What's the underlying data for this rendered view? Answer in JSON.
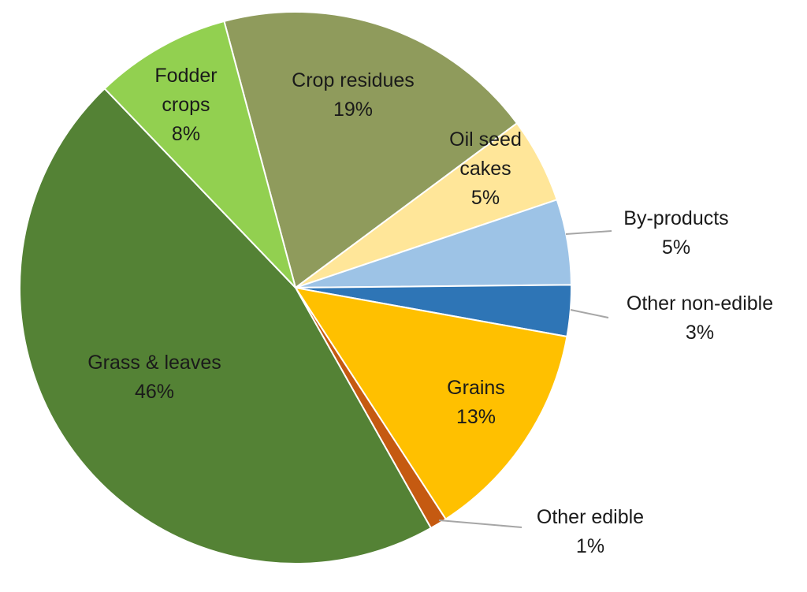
{
  "chart_data": {
    "type": "pie",
    "title": "",
    "start_category": "Crop residues",
    "direction": "clockwise",
    "slices": [
      {
        "label": "Crop residues",
        "value": 19,
        "value_label": "19%",
        "color": "#8F9B5C"
      },
      {
        "label": "Oil seed cakes",
        "value": 5,
        "value_label": "5%",
        "color": "#FFE699"
      },
      {
        "label": "By-products",
        "value": 5,
        "value_label": "5%",
        "color": "#9DC3E6"
      },
      {
        "label": "Other non-edible",
        "value": 3,
        "value_label": "3%",
        "color": "#2E75B6"
      },
      {
        "label": "Grains",
        "value": 13,
        "value_label": "13%",
        "color": "#FFC000"
      },
      {
        "label": "Other edible",
        "value": 1,
        "value_label": "1%",
        "color": "#C55A11"
      },
      {
        "label": "Grass & leaves",
        "value": 46,
        "value_label": "46%",
        "color": "#548235"
      },
      {
        "label": "Fodder crops",
        "value": 8,
        "value_label": "8%",
        "color": "#92D050"
      }
    ]
  }
}
